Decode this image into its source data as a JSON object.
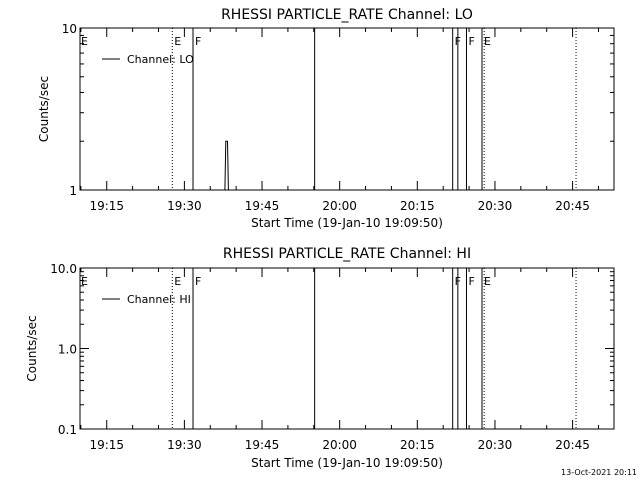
{
  "chart_data": [
    {
      "type": "line",
      "title": "RHESSI PARTICLE_RATE Channel: LO",
      "xlabel": "Start Time (19-Jan-10 19:09:50)",
      "ylabel": "Counts/sec",
      "y_scale": "log",
      "ylim": [
        1,
        10
      ],
      "y_ticks": [
        {
          "value": 1,
          "label": "1"
        },
        {
          "value": 10,
          "label": "10"
        }
      ],
      "xlim": [
        "19:09:50",
        "20:53:00"
      ],
      "x_ticks": [
        "19:15",
        "19:30",
        "19:45",
        "20:00",
        "20:15",
        "20:30",
        "20:45"
      ],
      "legend": {
        "label": "Channel: LO",
        "placement": "top-left"
      },
      "series": [
        {
          "name": "Channel: LO",
          "points": [
            [
              "19:37:50",
              1.0
            ],
            [
              "19:38:00",
              2.0
            ],
            [
              "19:38:20",
              2.0
            ],
            [
              "19:38:30",
              1.0
            ]
          ]
        }
      ],
      "markers": [
        {
          "time": "19:27:40",
          "label": "E",
          "style": "dotted"
        },
        {
          "time": "19:31:40",
          "label": "F",
          "style": "solid"
        },
        {
          "time": "19:55:10",
          "label": "",
          "style": "solid"
        },
        {
          "time": "20:21:50",
          "label": "F",
          "style": "solid"
        },
        {
          "time": "20:22:50",
          "label": "",
          "style": "solid"
        },
        {
          "time": "20:24:30",
          "label": "F",
          "style": "solid"
        },
        {
          "time": "20:27:30",
          "label": "E",
          "style": "solid"
        },
        {
          "time": "20:27:55",
          "label": "",
          "style": "dotted"
        },
        {
          "time": "20:45:40",
          "label": "",
          "style": "dotted"
        }
      ]
    },
    {
      "type": "line",
      "title": "RHESSI PARTICLE_RATE Channel: HI",
      "xlabel": "Start Time (19-Jan-10 19:09:50)",
      "ylabel": "Counts/sec",
      "y_scale": "log",
      "ylim": [
        0.1,
        10
      ],
      "y_ticks": [
        {
          "value": 0.1,
          "label": "0.1"
        },
        {
          "value": 1,
          "label": "1.0"
        },
        {
          "value": 10,
          "label": "10.0"
        }
      ],
      "xlim": [
        "19:09:50",
        "20:53:00"
      ],
      "x_ticks": [
        "19:15",
        "19:30",
        "19:45",
        "20:00",
        "20:15",
        "20:30",
        "20:45"
      ],
      "legend": {
        "label": "Channel: HI",
        "placement": "top-left"
      },
      "series": [
        {
          "name": "Channel: HI",
          "points": []
        }
      ],
      "markers": [
        {
          "time": "19:27:40",
          "label": "E",
          "style": "dotted"
        },
        {
          "time": "19:31:40",
          "label": "F",
          "style": "solid"
        },
        {
          "time": "19:55:10",
          "label": "",
          "style": "solid"
        },
        {
          "time": "20:21:50",
          "label": "F",
          "style": "solid"
        },
        {
          "time": "20:22:50",
          "label": "",
          "style": "solid"
        },
        {
          "time": "20:24:30",
          "label": "F",
          "style": "solid"
        },
        {
          "time": "20:27:30",
          "label": "E",
          "style": "solid"
        },
        {
          "time": "20:27:55",
          "label": "",
          "style": "dotted"
        },
        {
          "time": "20:45:40",
          "label": "",
          "style": "dotted"
        }
      ]
    }
  ],
  "footer": {
    "timestamp": "13-Oct-2021 20:11"
  }
}
